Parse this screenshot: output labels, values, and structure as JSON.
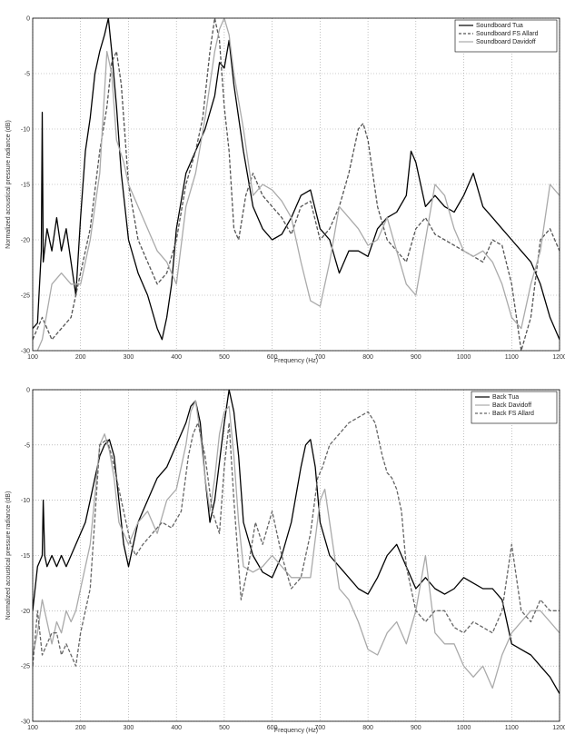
{
  "chart_data": [
    {
      "type": "line",
      "xlabel": "Frequency (Hz)",
      "ylabel": "Normalized acoustical pressure radiance (dB)",
      "xlim": [
        100,
        1200
      ],
      "ylim": [
        -30,
        0
      ],
      "xticks": [
        100,
        200,
        300,
        400,
        500,
        600,
        700,
        800,
        900,
        1000,
        1100,
        1200
      ],
      "yticks": [
        0,
        -5,
        -10,
        -15,
        -20,
        -25,
        -30
      ],
      "grid": true,
      "legend": "top-right",
      "series": [
        {
          "name": "Soundboard Tua",
          "color": "#000000",
          "dash": "solid",
          "x": [
            100,
            110,
            118,
            120,
            122,
            130,
            140,
            150,
            160,
            170,
            180,
            190,
            200,
            210,
            220,
            230,
            240,
            250,
            258,
            265,
            275,
            285,
            300,
            320,
            340,
            360,
            370,
            380,
            390,
            400,
            420,
            440,
            460,
            480,
            490,
            500,
            510,
            520,
            540,
            560,
            580,
            600,
            620,
            640,
            660,
            680,
            700,
            720,
            740,
            760,
            780,
            800,
            820,
            840,
            860,
            880,
            890,
            900,
            920,
            940,
            960,
            980,
            1000,
            1020,
            1040,
            1060,
            1080,
            1100,
            1120,
            1140,
            1160,
            1180,
            1200
          ],
          "y": [
            -28,
            -27.5,
            -21,
            -8.5,
            -22,
            -19,
            -21,
            -18,
            -21,
            -19,
            -22,
            -25,
            -18,
            -12,
            -9,
            -5,
            -3,
            -1.5,
            0,
            -3,
            -8,
            -14,
            -20,
            -23,
            -25,
            -28,
            -29,
            -27,
            -24,
            -19,
            -14,
            -12,
            -10,
            -7,
            -4,
            -4.5,
            -2,
            -6,
            -12,
            -17,
            -19,
            -20,
            -19.5,
            -18,
            -16,
            -15.5,
            -19,
            -20,
            -23,
            -21,
            -21,
            -21.5,
            -19,
            -18,
            -17.5,
            -16,
            -12,
            -13,
            -17,
            -16,
            -17,
            -17.5,
            -16,
            -14,
            -17,
            -18,
            -19,
            -20,
            -21,
            -22,
            -24,
            -27,
            -29
          ]
        },
        {
          "name": "Soundboard FS Allard",
          "color": "#555555",
          "dash": "dashed",
          "x": [
            100,
            120,
            140,
            160,
            180,
            200,
            220,
            240,
            255,
            265,
            275,
            285,
            300,
            320,
            340,
            360,
            380,
            400,
            420,
            440,
            455,
            470,
            480,
            490,
            500,
            510,
            520,
            530,
            545,
            560,
            580,
            600,
            620,
            640,
            660,
            680,
            700,
            720,
            740,
            760,
            780,
            790,
            800,
            820,
            840,
            860,
            880,
            900,
            920,
            940,
            960,
            980,
            1000,
            1020,
            1040,
            1060,
            1080,
            1100,
            1120,
            1140,
            1160,
            1180,
            1200
          ],
          "y": [
            -29,
            -27,
            -29,
            -28,
            -27,
            -23,
            -19,
            -12,
            -8,
            -4,
            -3,
            -6,
            -15,
            -20,
            -22,
            -24,
            -23,
            -20,
            -15,
            -12,
            -9,
            -3,
            0,
            -2,
            -8,
            -12,
            -19,
            -20,
            -16,
            -14,
            -16,
            -17,
            -18,
            -19.5,
            -17,
            -16.5,
            -20,
            -19,
            -17,
            -14,
            -10,
            -9.5,
            -11,
            -17,
            -20,
            -21,
            -22,
            -19,
            -18,
            -19.5,
            -20,
            -20.5,
            -21,
            -21.5,
            -22,
            -20,
            -20.5,
            -24,
            -30,
            -27,
            -20,
            -19,
            -21
          ]
        },
        {
          "name": "Soundboard Davidoff",
          "color": "#aaaaaa",
          "dash": "solid",
          "x": [
            100,
            120,
            140,
            160,
            180,
            200,
            220,
            240,
            255,
            265,
            275,
            290,
            300,
            320,
            340,
            360,
            380,
            400,
            420,
            440,
            460,
            470,
            480,
            490,
            500,
            510,
            520,
            540,
            560,
            580,
            600,
            620,
            640,
            660,
            680,
            700,
            720,
            740,
            760,
            780,
            800,
            820,
            840,
            860,
            880,
            900,
            920,
            940,
            960,
            980,
            1000,
            1020,
            1040,
            1060,
            1080,
            1100,
            1120,
            1140,
            1160,
            1180,
            1200
          ],
          "y": [
            -31,
            -29,
            -24,
            -23,
            -24,
            -24,
            -20,
            -14,
            -3,
            -5,
            -11,
            -13,
            -15,
            -17,
            -19,
            -21,
            -22,
            -24,
            -17,
            -14,
            -9,
            -6,
            -3,
            -1,
            0,
            -1.5,
            -5,
            -10,
            -16,
            -15,
            -15.5,
            -16.5,
            -18,
            -22,
            -25.5,
            -26,
            -22,
            -17,
            -18,
            -19,
            -20.5,
            -20,
            -18,
            -21,
            -24,
            -25,
            -20,
            -15,
            -16,
            -19,
            -21,
            -21.5,
            -21,
            -22,
            -24,
            -27,
            -28,
            -24,
            -21,
            -15,
            -16
          ]
        }
      ]
    },
    {
      "type": "line",
      "xlabel": "Frequency (Hz)",
      "ylabel": "Normalized acoustical pressure radiance (dB)",
      "xlim": [
        100,
        1200
      ],
      "ylim": [
        -30,
        0
      ],
      "xticks": [
        100,
        200,
        300,
        400,
        500,
        600,
        700,
        800,
        900,
        1000,
        1100,
        1200
      ],
      "yticks": [
        0,
        -5,
        -10,
        -15,
        -20,
        -25,
        -30
      ],
      "grid": true,
      "legend": "top-right",
      "series": [
        {
          "name": "Back Tua",
          "color": "#000000",
          "dash": "solid",
          "x": [
            100,
            110,
            120,
            122,
            125,
            130,
            140,
            150,
            160,
            170,
            180,
            190,
            200,
            210,
            220,
            230,
            240,
            250,
            260,
            270,
            280,
            290,
            300,
            320,
            340,
            360,
            380,
            400,
            420,
            430,
            440,
            450,
            460,
            470,
            480,
            500,
            510,
            520,
            530,
            540,
            560,
            580,
            600,
            620,
            640,
            660,
            670,
            680,
            690,
            700,
            720,
            740,
            760,
            780,
            800,
            820,
            840,
            860,
            880,
            900,
            920,
            940,
            960,
            980,
            1000,
            1020,
            1040,
            1060,
            1080,
            1100,
            1120,
            1140,
            1160,
            1180,
            1200
          ],
          "y": [
            -20,
            -16,
            -15,
            -10,
            -15,
            -16,
            -15,
            -16,
            -15,
            -16,
            -15,
            -14,
            -13,
            -12,
            -10,
            -8,
            -6,
            -5,
            -4.5,
            -6,
            -10,
            -14,
            -16,
            -12,
            -10,
            -8,
            -7,
            -5,
            -3,
            -1.5,
            -1,
            -3,
            -8,
            -12,
            -10,
            -3,
            0,
            -2,
            -6,
            -12,
            -15,
            -16.5,
            -17,
            -15,
            -12,
            -7,
            -5,
            -4.5,
            -7,
            -12,
            -15,
            -16,
            -17,
            -18,
            -18.5,
            -17,
            -15,
            -14,
            -16,
            -18,
            -17,
            -18,
            -18.5,
            -18,
            -17,
            -17.5,
            -18,
            -18,
            -19,
            -23,
            -23.5,
            -24,
            -25,
            -26,
            -27.5
          ]
        },
        {
          "name": "Back Davidoff",
          "color": "#aaaaaa",
          "dash": "solid",
          "x": [
            100,
            110,
            120,
            130,
            140,
            150,
            160,
            170,
            180,
            190,
            200,
            220,
            240,
            250,
            260,
            270,
            280,
            290,
            300,
            310,
            320,
            340,
            360,
            380,
            400,
            420,
            430,
            440,
            450,
            460,
            470,
            480,
            490,
            500,
            510,
            520,
            530,
            540,
            560,
            580,
            600,
            620,
            640,
            660,
            680,
            700,
            710,
            720,
            740,
            760,
            780,
            800,
            820,
            840,
            860,
            880,
            900,
            920,
            940,
            960,
            980,
            1000,
            1020,
            1040,
            1060,
            1080,
            1100,
            1120,
            1140,
            1160,
            1180,
            1200
          ],
          "y": [
            -24,
            -22,
            -19,
            -21,
            -23,
            -21,
            -22,
            -20,
            -21,
            -20,
            -18,
            -14,
            -5,
            -4,
            -5.5,
            -8,
            -12,
            -13,
            -14,
            -13,
            -12,
            -11,
            -13,
            -10,
            -9,
            -5,
            -2,
            -1,
            -4,
            -8,
            -11,
            -8,
            -4,
            -2,
            -1.5,
            -6,
            -12,
            -16,
            -16.5,
            -16,
            -15,
            -16,
            -17,
            -17,
            -17,
            -10,
            -9,
            -12,
            -18,
            -19,
            -21,
            -23.5,
            -24,
            -22,
            -21,
            -23,
            -20,
            -15,
            -22,
            -23,
            -23,
            -25,
            -26,
            -25,
            -27,
            -24,
            -22,
            -21,
            -20,
            -20,
            -21,
            -22
          ]
        },
        {
          "name": "Back FS Allard",
          "color": "#666666",
          "dash": "dashed",
          "x": [
            100,
            110,
            120,
            130,
            140,
            150,
            160,
            170,
            180,
            190,
            200,
            220,
            240,
            255,
            265,
            275,
            285,
            295,
            305,
            315,
            330,
            350,
            370,
            390,
            410,
            425,
            435,
            445,
            460,
            475,
            490,
            500,
            510,
            520,
            535,
            550,
            565,
            580,
            600,
            620,
            640,
            660,
            680,
            695,
            705,
            720,
            740,
            760,
            780,
            800,
            815,
            830,
            840,
            850,
            860,
            870,
            880,
            900,
            920,
            940,
            960,
            980,
            1000,
            1020,
            1040,
            1060,
            1080,
            1090,
            1100,
            1110,
            1120,
            1140,
            1160,
            1180,
            1200
          ],
          "y": [
            -25,
            -20,
            -24,
            -23,
            -22,
            -22,
            -24,
            -23,
            -24,
            -25,
            -22,
            -18,
            -5,
            -4.5,
            -6,
            -8,
            -10,
            -12,
            -14,
            -15,
            -14,
            -13,
            -12,
            -12.5,
            -11,
            -6,
            -4,
            -3,
            -6,
            -11,
            -13,
            -7,
            -3,
            -10,
            -19,
            -16,
            -12,
            -14,
            -11,
            -15,
            -18,
            -17,
            -13,
            -8,
            -7,
            -5,
            -4,
            -3,
            -2.5,
            -2,
            -3,
            -6,
            -7.5,
            -8,
            -9,
            -11,
            -16,
            -20,
            -21,
            -20,
            -20,
            -21.5,
            -22,
            -21,
            -21.5,
            -22,
            -20,
            -17,
            -14,
            -17,
            -20,
            -21,
            -19,
            -20,
            -20
          ]
        }
      ]
    }
  ]
}
